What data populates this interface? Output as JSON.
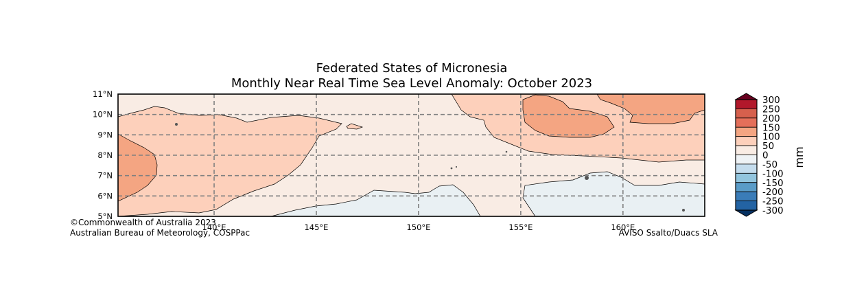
{
  "title": {
    "line1": "Federated States of Micronesia",
    "line2": "Monthly Near Real Time Sea Level Anomaly: October 2023"
  },
  "map": {
    "lat_range": [
      5,
      11
    ],
    "lon_range": [
      135.3,
      164.0
    ],
    "lat_ticks": [
      "11°N",
      "10°N",
      "9°N",
      "8°N",
      "7°N",
      "6°N",
      "5°N"
    ],
    "lon_ticks": [
      "140°E",
      "145°E",
      "150°E",
      "155°E",
      "160°E"
    ],
    "lon_tick_values": [
      140,
      145,
      150,
      155,
      160
    ],
    "lat_grid_values": [
      10,
      9,
      8,
      7,
      6
    ],
    "gridline_color": "#808080",
    "land_color": "#555555"
  },
  "colorbar": {
    "unit": "mm",
    "labels": [
      "300",
      "250",
      "200",
      "150",
      "100",
      "50",
      "0",
      "-50",
      "-100",
      "-150",
      "-200",
      "-250",
      "-300"
    ],
    "colors": [
      "#b2182b",
      "#d6604d",
      "#e46f5a",
      "#f4a582",
      "#fdd0bb",
      "#f9ece4",
      "#eef2f5",
      "#c4dced",
      "#92c5de",
      "#5a9cc8",
      "#3a7cb8",
      "#2363a3"
    ],
    "top_arrow_color": "#67001f",
    "bottom_arrow_color": "#053061"
  },
  "credits": {
    "left_line1": "©Commonwealth of Australia 2023",
    "left_line2": "Australian Bureau of Meteorology, COSPPac",
    "right": "AVISO Ssalto/Duacs SLA"
  }
}
